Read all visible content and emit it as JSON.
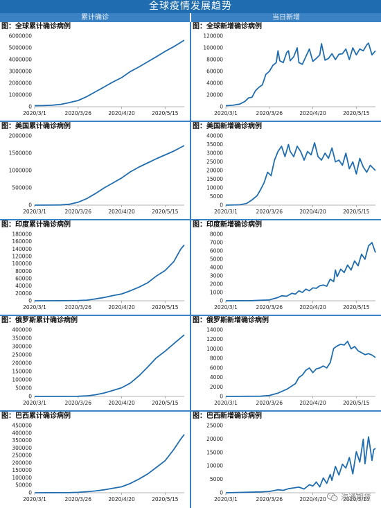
{
  "header": {
    "title": "全球疫情发展趋势",
    "left_column": "累计确诊",
    "right_column": "当日新增"
  },
  "watermark": {
    "text": "海通期货",
    "icon": "wechat-icon"
  },
  "line_color": "#1f6db0",
  "chart_data": [
    {
      "id": "global-cumulative",
      "type": "line",
      "title": "图：全球累计确诊病例",
      "ylim": [
        0,
        6000000
      ],
      "yticks": [
        0,
        1000000,
        2000000,
        3000000,
        4000000,
        5000000,
        6000000
      ],
      "xlim": [
        0,
        86
      ],
      "xticks": [
        {
          "pos": 0,
          "label": "2020/3/1"
        },
        {
          "pos": 25,
          "label": "2020/3/26"
        },
        {
          "pos": 50,
          "label": "2020/4/20"
        },
        {
          "pos": 75,
          "label": "2020/5/15"
        }
      ],
      "series": [
        {
          "x": [
            0,
            5,
            10,
            15,
            20,
            25,
            30,
            35,
            40,
            45,
            50,
            55,
            60,
            65,
            70,
            75,
            80,
            86
          ],
          "y": [
            88000,
            100000,
            130000,
            200000,
            350000,
            530000,
            860000,
            1270000,
            1680000,
            2100000,
            2470000,
            2980000,
            3380000,
            3820000,
            4250000,
            4700000,
            5100000,
            5650000
          ]
        }
      ]
    },
    {
      "id": "global-daily",
      "type": "line",
      "title": "图：全球新增确诊病例",
      "ylim": [
        0,
        120000
      ],
      "yticks": [
        0,
        20000,
        40000,
        60000,
        80000,
        100000,
        120000
      ],
      "xlim": [
        0,
        86
      ],
      "xticks": [
        {
          "pos": 0,
          "label": "2020/3/1"
        },
        {
          "pos": 25,
          "label": "2020/3/26"
        },
        {
          "pos": 50,
          "label": "2020/4/20"
        },
        {
          "pos": 75,
          "label": "2020/5/15"
        }
      ],
      "series": [
        {
          "x": [
            0,
            4,
            8,
            11,
            13,
            15,
            17,
            19,
            21,
            23,
            25,
            27,
            29,
            30,
            31,
            33,
            35,
            36,
            37,
            39,
            41,
            42,
            44,
            46,
            48,
            50,
            52,
            54,
            55,
            57,
            59,
            61,
            63,
            65,
            67,
            69,
            71,
            73,
            75,
            77,
            79,
            81,
            82,
            84,
            86
          ],
          "y": [
            1800,
            2500,
            4500,
            9000,
            15000,
            16000,
            27000,
            33000,
            37000,
            55000,
            60000,
            70000,
            75000,
            95000,
            78000,
            75000,
            92000,
            95000,
            78000,
            85000,
            100000,
            75000,
            72000,
            85000,
            98000,
            77000,
            82000,
            88000,
            107000,
            79000,
            82000,
            90000,
            80000,
            89000,
            90000,
            98000,
            80000,
            100000,
            88000,
            98000,
            95000,
            105000,
            108000,
            88000,
            95000
          ]
        }
      ]
    },
    {
      "id": "us-cumulative",
      "type": "line",
      "title": "图：美国累计确诊病例",
      "ylim": [
        0,
        2000000
      ],
      "yticks": [
        0,
        500000,
        1000000,
        1500000,
        2000000
      ],
      "xlim": [
        0,
        86
      ],
      "xticks": [
        {
          "pos": 0,
          "label": "2020/3/1"
        },
        {
          "pos": 25,
          "label": "2020/3/26"
        },
        {
          "pos": 50,
          "label": "2020/4/20"
        },
        {
          "pos": 75,
          "label": "2020/5/15"
        }
      ],
      "series": [
        {
          "x": [
            0,
            10,
            15,
            20,
            25,
            30,
            35,
            40,
            45,
            50,
            55,
            60,
            65,
            70,
            75,
            80,
            86
          ],
          "y": [
            70,
            1600,
            7000,
            26000,
            83000,
            188000,
            337000,
            500000,
            640000,
            785000,
            960000,
            1100000,
            1220000,
            1340000,
            1450000,
            1560000,
            1720000
          ]
        }
      ]
    },
    {
      "id": "us-daily",
      "type": "line",
      "title": "图：美国新增确诊病例",
      "ylim": [
        0,
        40000
      ],
      "yticks": [
        0,
        5000,
        10000,
        15000,
        20000,
        25000,
        30000,
        35000,
        40000
      ],
      "xlim": [
        0,
        86
      ],
      "xticks": [
        {
          "pos": 0,
          "label": "2020/3/1"
        },
        {
          "pos": 25,
          "label": "2020/3/26"
        },
        {
          "pos": 50,
          "label": "2020/4/20"
        },
        {
          "pos": 75,
          "label": "2020/5/15"
        }
      ],
      "series": [
        {
          "x": [
            0,
            8,
            12,
            15,
            18,
            20,
            22,
            24,
            26,
            28,
            30,
            32,
            34,
            36,
            37,
            39,
            41,
            43,
            45,
            47,
            49,
            51,
            53,
            55,
            57,
            59,
            61,
            63,
            65,
            67,
            69,
            71,
            73,
            75,
            77,
            79,
            81,
            83,
            86
          ],
          "y": [
            10,
            200,
            1000,
            3000,
            5500,
            9000,
            13000,
            19000,
            17000,
            26000,
            31000,
            34000,
            28000,
            35000,
            31000,
            28000,
            34000,
            31000,
            26000,
            31000,
            29000,
            36000,
            28000,
            26000,
            30000,
            27000,
            33000,
            25000,
            26000,
            23000,
            30000,
            21000,
            25000,
            18000,
            27000,
            22000,
            19000,
            23000,
            20000
          ]
        }
      ]
    },
    {
      "id": "india-cumulative",
      "type": "line",
      "title": "图：印度累计确诊病例",
      "ylim": [
        0,
        180000
      ],
      "yticks": [
        0,
        20000,
        40000,
        60000,
        80000,
        100000,
        120000,
        140000,
        160000,
        180000
      ],
      "xlim": [
        0,
        86
      ],
      "xticks": [
        {
          "pos": 0,
          "label": "2020/3/1"
        },
        {
          "pos": 25,
          "label": "2020/3/26"
        },
        {
          "pos": 50,
          "label": "2020/4/20"
        },
        {
          "pos": 75,
          "label": "2020/5/15"
        }
      ],
      "series": [
        {
          "x": [
            0,
            15,
            25,
            30,
            35,
            40,
            45,
            50,
            55,
            60,
            65,
            70,
            75,
            80,
            84,
            86
          ],
          "y": [
            3,
            100,
            700,
            1600,
            5000,
            9000,
            14000,
            18600,
            27000,
            37000,
            49000,
            67000,
            82000,
            106000,
            140000,
            151000
          ]
        }
      ]
    },
    {
      "id": "india-daily",
      "type": "line",
      "title": "图：印度新增确诊病例",
      "ylim": [
        0,
        8000
      ],
      "yticks": [
        0,
        1000,
        2000,
        3000,
        4000,
        5000,
        6000,
        7000,
        8000
      ],
      "xlim": [
        0,
        86
      ],
      "xticks": [
        {
          "pos": 0,
          "label": "2020/3/1"
        },
        {
          "pos": 25,
          "label": "2020/3/26"
        },
        {
          "pos": 50,
          "label": "2020/4/20"
        },
        {
          "pos": 75,
          "label": "2020/5/15"
        }
      ],
      "series": [
        {
          "x": [
            0,
            15,
            25,
            30,
            32,
            35,
            38,
            40,
            42,
            44,
            46,
            48,
            50,
            52,
            54,
            56,
            58,
            60,
            62,
            63,
            64,
            66,
            68,
            70,
            72,
            74,
            76,
            78,
            80,
            82,
            84,
            86
          ],
          "y": [
            0,
            20,
            100,
            400,
            600,
            550,
            900,
            800,
            1200,
            1000,
            1400,
            1200,
            1550,
            1500,
            1800,
            1900,
            1750,
            2600,
            2300,
            3700,
            2900,
            3800,
            3400,
            4300,
            3700,
            4800,
            4200,
            5600,
            5000,
            6600,
            7000,
            5800
          ]
        }
      ]
    },
    {
      "id": "russia-cumulative",
      "type": "line",
      "title": "图：俄罗斯累计确诊病例",
      "ylim": [
        0,
        400000
      ],
      "yticks": [
        0,
        50000,
        100000,
        150000,
        200000,
        250000,
        300000,
        350000,
        400000
      ],
      "xlim": [
        0,
        86
      ],
      "xticks": [
        {
          "pos": 0,
          "label": "2020/3/1"
        },
        {
          "pos": 25,
          "label": "2020/3/26"
        },
        {
          "pos": 50,
          "label": "2020/4/20"
        },
        {
          "pos": 75,
          "label": "2020/5/15"
        }
      ],
      "series": [
        {
          "x": [
            0,
            20,
            25,
            30,
            35,
            40,
            45,
            50,
            55,
            60,
            65,
            70,
            75,
            80,
            86
          ],
          "y": [
            0,
            500,
            1000,
            3500,
            10000,
            21000,
            36000,
            52000,
            80000,
            124000,
            177000,
            232000,
            272000,
            317000,
            370000
          ]
        }
      ]
    },
    {
      "id": "russia-daily",
      "type": "line",
      "title": "图：俄罗斯新增确诊病例",
      "ylim": [
        0,
        14000
      ],
      "yticks": [
        0,
        2000,
        4000,
        6000,
        8000,
        10000,
        12000,
        14000
      ],
      "xlim": [
        0,
        86
      ],
      "xticks": [
        {
          "pos": 0,
          "label": "2020/3/1"
        },
        {
          "pos": 25,
          "label": "2020/3/26"
        },
        {
          "pos": 50,
          "label": "2020/4/20"
        },
        {
          "pos": 75,
          "label": "2020/5/15"
        }
      ],
      "series": [
        {
          "x": [
            0,
            20,
            25,
            30,
            35,
            38,
            40,
            42,
            44,
            46,
            48,
            50,
            52,
            54,
            56,
            58,
            60,
            62,
            64,
            66,
            68,
            70,
            72,
            74,
            76,
            78,
            80,
            82,
            84,
            86
          ],
          "y": [
            0,
            50,
            200,
            700,
            1500,
            2200,
            2700,
            4000,
            4500,
            5500,
            6000,
            5000,
            5800,
            6000,
            6400,
            6000,
            7100,
            10100,
            10600,
            11000,
            10800,
            11600,
            10000,
            10500,
            9600,
            9200,
            8800,
            9000,
            8700,
            8200
          ]
        }
      ]
    },
    {
      "id": "brazil-cumulative",
      "type": "line",
      "title": "图：巴西累计确诊病例",
      "ylim": [
        0,
        450000
      ],
      "yticks": [
        0,
        50000,
        100000,
        150000,
        200000,
        250000,
        300000,
        350000,
        400000,
        450000
      ],
      "xlim": [
        0,
        86
      ],
      "xticks": [
        {
          "pos": 0,
          "label": "2020/3/1"
        },
        {
          "pos": 25,
          "label": "2020/3/26"
        },
        {
          "pos": 50,
          "label": "2020/4/20"
        },
        {
          "pos": 75,
          "label": "2020/5/15"
        }
      ],
      "series": [
        {
          "x": [
            0,
            20,
            25,
            30,
            35,
            40,
            45,
            50,
            55,
            60,
            65,
            70,
            75,
            80,
            84,
            86
          ],
          "y": [
            2,
            1000,
            3000,
            6800,
            12000,
            20000,
            30000,
            40000,
            62000,
            92000,
            126000,
            170000,
            215000,
            290000,
            360000,
            390000
          ]
        }
      ]
    },
    {
      "id": "brazil-daily",
      "type": "line",
      "title": "图：巴西新增确诊病例",
      "ylim": [
        0,
        25000
      ],
      "yticks": [
        0,
        5000,
        10000,
        15000,
        20000,
        25000
      ],
      "xlim": [
        0,
        86
      ],
      "xticks": [
        {
          "pos": 0,
          "label": "2020/3/1"
        },
        {
          "pos": 25,
          "label": "2020/3/26"
        },
        {
          "pos": 50,
          "label": "2020/4/20"
        },
        {
          "pos": 75,
          "label": "2020/5/15"
        }
      ],
      "series": [
        {
          "x": [
            0,
            20,
            25,
            30,
            33,
            36,
            39,
            42,
            45,
            48,
            50,
            52,
            54,
            56,
            58,
            60,
            61,
            63,
            65,
            67,
            69,
            71,
            73,
            75,
            77,
            79,
            80,
            82,
            83,
            84,
            85,
            86
          ],
          "y": [
            0,
            300,
            500,
            1100,
            900,
            1500,
            1800,
            2100,
            1400,
            3000,
            2500,
            4000,
            2200,
            5500,
            3500,
            6800,
            4600,
            9800,
            6600,
            10600,
            9200,
            13100,
            7000,
            15300,
            11400,
            19900,
            10800,
            20800,
            16500,
            12000,
            16000,
            16500
          ]
        }
      ]
    }
  ]
}
